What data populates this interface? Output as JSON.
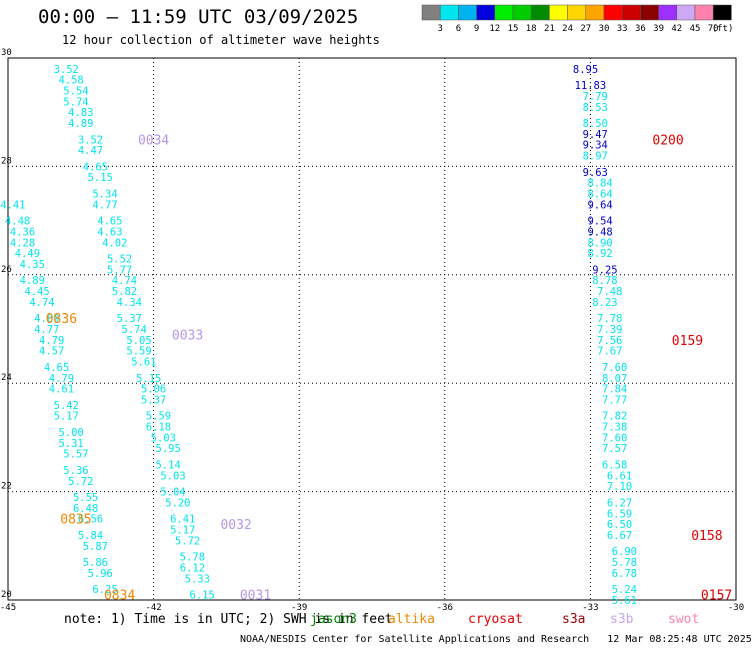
{
  "header": {
    "title": "00:00 – 11:59 UTC 03/09/2025",
    "subtitle": "12 hour collection of altimeter wave heights"
  },
  "legend": {
    "labels": [
      "3",
      "6",
      "9",
      "12",
      "15",
      "18",
      "21",
      "24",
      "27",
      "30",
      "33",
      "36",
      "39",
      "42",
      "45",
      "70"
    ],
    "unit": "(ft)",
    "colors": [
      "#808080",
      "#00e5ee",
      "#00b2ee",
      "#0000e0",
      "#00ee00",
      "#00cd00",
      "#008b00",
      "#ffff00",
      "#ffd700",
      "#ffa500",
      "#ff0000",
      "#cd0000",
      "#8b0000",
      "#9b30ff",
      "#cfa8f5",
      "#ff82ab",
      "#000000"
    ]
  },
  "chart_data": {
    "type": "scatter",
    "xlim": [
      -45,
      -30
    ],
    "ylim": [
      20,
      30
    ],
    "x_ticks": [
      "-45",
      "-42",
      "-39",
      "-36",
      "-33",
      "-30"
    ],
    "y_ticks": [
      "30",
      "28",
      "26",
      "24",
      "22",
      "20"
    ],
    "grid": true,
    "series": [
      {
        "color": "#00e5ee",
        "points": [
          [
            -43.8,
            29.8,
            "3.52"
          ],
          [
            -43.7,
            29.6,
            "4.58"
          ],
          [
            -43.6,
            29.4,
            "5.54"
          ],
          [
            -43.6,
            29.2,
            "5.74"
          ],
          [
            -43.5,
            29.0,
            "4.83"
          ],
          [
            -43.5,
            28.8,
            "4.89"
          ],
          [
            -43.3,
            28.5,
            "3.52"
          ],
          [
            -43.3,
            28.3,
            "4.47"
          ],
          [
            -43.2,
            28.0,
            "4.65"
          ],
          [
            -43.1,
            27.8,
            "5.15"
          ],
          [
            -43.0,
            27.5,
            "5.34"
          ],
          [
            -43.0,
            27.3,
            "4.77"
          ],
          [
            -42.9,
            27.0,
            "4.65"
          ],
          [
            -42.9,
            26.8,
            "4.63"
          ],
          [
            -42.8,
            26.6,
            "4.02"
          ],
          [
            -42.7,
            26.3,
            "5.52"
          ],
          [
            -42.7,
            26.1,
            "5.77"
          ],
          [
            -42.6,
            25.9,
            "4.74"
          ],
          [
            -42.6,
            25.7,
            "5.82"
          ],
          [
            -42.5,
            25.5,
            "4.34"
          ],
          [
            -42.5,
            25.2,
            "5.37"
          ],
          [
            -42.4,
            25.0,
            "5.74"
          ],
          [
            -42.3,
            24.8,
            "5.05"
          ],
          [
            -42.3,
            24.6,
            "5.59"
          ],
          [
            -42.2,
            24.4,
            "5.61"
          ],
          [
            -42.1,
            24.1,
            "5.15"
          ],
          [
            -42.0,
            23.9,
            "5.06"
          ],
          [
            -42.0,
            23.7,
            "5.37"
          ],
          [
            -41.9,
            23.4,
            "5.59"
          ],
          [
            -41.9,
            23.2,
            "6.18"
          ],
          [
            -41.8,
            23.0,
            "5.03"
          ],
          [
            -41.7,
            22.8,
            "5.95"
          ],
          [
            -41.7,
            22.5,
            "5.14"
          ],
          [
            -41.6,
            22.3,
            "5.03"
          ],
          [
            -41.6,
            22.0,
            "5.04"
          ],
          [
            -41.5,
            21.8,
            "5.20"
          ],
          [
            -41.4,
            21.5,
            "6.41"
          ],
          [
            -41.4,
            21.3,
            "5.17"
          ],
          [
            -41.3,
            21.1,
            "5.72"
          ],
          [
            -41.2,
            20.8,
            "5.78"
          ],
          [
            -41.2,
            20.6,
            "6.12"
          ],
          [
            -41.1,
            20.4,
            "5.33"
          ],
          [
            -41.0,
            20.1,
            "6.15"
          ],
          [
            -44.9,
            27.3,
            "4.41"
          ],
          [
            -44.8,
            27.0,
            "4.48"
          ],
          [
            -44.7,
            26.8,
            "4.36"
          ],
          [
            -44.7,
            26.6,
            "4.28"
          ],
          [
            -44.6,
            26.4,
            "4.49"
          ],
          [
            -44.5,
            26.2,
            "4.35"
          ],
          [
            -44.5,
            25.9,
            "4.89"
          ],
          [
            -44.4,
            25.7,
            "4.45"
          ],
          [
            -44.3,
            25.5,
            "4.74"
          ],
          [
            -44.2,
            25.2,
            "4.69"
          ],
          [
            -44.2,
            25.0,
            "4.77"
          ],
          [
            -44.1,
            24.8,
            "4.79"
          ],
          [
            -44.1,
            24.6,
            "4.57"
          ],
          [
            -44.0,
            24.3,
            "4.65"
          ],
          [
            -43.9,
            24.1,
            "4.79"
          ],
          [
            -43.9,
            23.9,
            "4.61"
          ],
          [
            -43.8,
            23.6,
            "5.42"
          ],
          [
            -43.8,
            23.4,
            "5.17"
          ],
          [
            -43.7,
            23.1,
            "5.00"
          ],
          [
            -43.7,
            22.9,
            "5.31"
          ],
          [
            -43.6,
            22.7,
            "5.57"
          ],
          [
            -43.6,
            22.4,
            "5.36"
          ],
          [
            -43.5,
            22.2,
            "5.72"
          ],
          [
            -43.4,
            21.9,
            "5.55"
          ],
          [
            -43.4,
            21.7,
            "6.48"
          ],
          [
            -43.3,
            21.5,
            "6.56"
          ],
          [
            -43.3,
            21.2,
            "5.84"
          ],
          [
            -43.2,
            21.0,
            "5.87"
          ],
          [
            -43.2,
            20.7,
            "5.86"
          ],
          [
            -43.1,
            20.5,
            "5.96"
          ],
          [
            -43.0,
            20.2,
            "6.25"
          ],
          [
            -33.1,
            29.8,
            "8.95"
          ],
          [
            -33.0,
            29.5,
            "11.83"
          ],
          [
            -32.9,
            29.3,
            "7.79"
          ],
          [
            -32.9,
            29.1,
            "8.53"
          ],
          [
            -32.9,
            28.8,
            "8.50"
          ],
          [
            -32.9,
            28.6,
            "9.47"
          ],
          [
            -32.9,
            28.4,
            "9.34"
          ],
          [
            -32.9,
            28.2,
            "8.97"
          ],
          [
            -32.9,
            27.9,
            "9.63"
          ],
          [
            -32.8,
            27.7,
            "8.84"
          ],
          [
            -32.8,
            27.5,
            "8.64"
          ],
          [
            -32.8,
            27.3,
            "9.64"
          ],
          [
            -32.8,
            27.0,
            "9.54"
          ],
          [
            -32.8,
            26.8,
            "9.48"
          ],
          [
            -32.8,
            26.6,
            "8.90"
          ],
          [
            -32.8,
            26.4,
            "8.92"
          ],
          [
            -32.7,
            26.1,
            "9.25"
          ],
          [
            -32.7,
            25.9,
            "8.78"
          ],
          [
            -32.6,
            25.7,
            "7.48"
          ],
          [
            -32.7,
            25.5,
            "8.23"
          ],
          [
            -32.6,
            25.2,
            "7.78"
          ],
          [
            -32.6,
            25.0,
            "7.39"
          ],
          [
            -32.6,
            24.8,
            "7.56"
          ],
          [
            -32.6,
            24.6,
            "7.67"
          ],
          [
            -32.5,
            24.3,
            "7.60"
          ],
          [
            -32.5,
            24.1,
            "8.07"
          ],
          [
            -32.5,
            23.9,
            "7.84"
          ],
          [
            -32.5,
            23.7,
            "7.77"
          ],
          [
            -32.5,
            23.4,
            "7.82"
          ],
          [
            -32.5,
            23.2,
            "7.38"
          ],
          [
            -32.5,
            23.0,
            "7.60"
          ],
          [
            -32.5,
            22.8,
            "7.57"
          ],
          [
            -32.5,
            22.5,
            "6.58"
          ],
          [
            -32.4,
            22.3,
            "6.61"
          ],
          [
            -32.4,
            22.1,
            "7.10"
          ],
          [
            -32.4,
            21.8,
            "6.27"
          ],
          [
            -32.4,
            21.6,
            "6.59"
          ],
          [
            -32.4,
            21.4,
            "6.50"
          ],
          [
            -32.4,
            21.2,
            "6.67"
          ],
          [
            -32.3,
            20.9,
            "6.90"
          ],
          [
            -32.3,
            20.7,
            "5.78"
          ],
          [
            -32.3,
            20.5,
            "6.78"
          ],
          [
            -32.3,
            20.2,
            "5.24"
          ],
          [
            -32.3,
            20.0,
            "5.61"
          ]
        ]
      },
      {
        "color": "#0000cd",
        "points_ref": "dark-blue labels in the right track"
      }
    ],
    "time_labels": [
      {
        "x": -42.0,
        "y": 28.5,
        "text": "0034",
        "color": "#b497e8"
      },
      {
        "x": -43.9,
        "y": 25.2,
        "text": "0836",
        "color": "#ee8800"
      },
      {
        "x": -41.3,
        "y": 24.9,
        "text": "0033",
        "color": "#b497e8"
      },
      {
        "x": -43.6,
        "y": 21.5,
        "text": "0835",
        "color": "#ee8800"
      },
      {
        "x": -40.3,
        "y": 21.4,
        "text": "0032",
        "color": "#b497e8"
      },
      {
        "x": -42.7,
        "y": 20.1,
        "text": "0834",
        "color": "#ee8800"
      },
      {
        "x": -39.9,
        "y": 20.1,
        "text": "0031",
        "color": "#b497e8"
      },
      {
        "x": -31.4,
        "y": 28.5,
        "text": "0200",
        "color": "#e00000"
      },
      {
        "x": -31.0,
        "y": 24.8,
        "text": "0159",
        "color": "#e00000"
      },
      {
        "x": -30.6,
        "y": 21.2,
        "text": "0158",
        "color": "#e00000"
      },
      {
        "x": -30.4,
        "y": 20.1,
        "text": "0157",
        "color": "#e00000"
      }
    ]
  },
  "note": "note: 1) Time is in UTC; 2) SWH is in feet",
  "satellites": [
    {
      "name": "jason3",
      "color": "#008000",
      "x": 310
    },
    {
      "name": "altika",
      "color": "#ee8800",
      "x": 388
    },
    {
      "name": "cryosat",
      "color": "#e00000",
      "x": 468
    },
    {
      "name": "s3a",
      "color": "#990000",
      "x": 562
    },
    {
      "name": "s3b",
      "color": "#c4a3f2",
      "x": 610
    },
    {
      "name": "swot",
      "color": "#ff82ab",
      "x": 668
    }
  ],
  "footer": "NOAA/NESDIS Center for Satellite Applications and Research   12 Mar 08:25:48 UTC 2025"
}
